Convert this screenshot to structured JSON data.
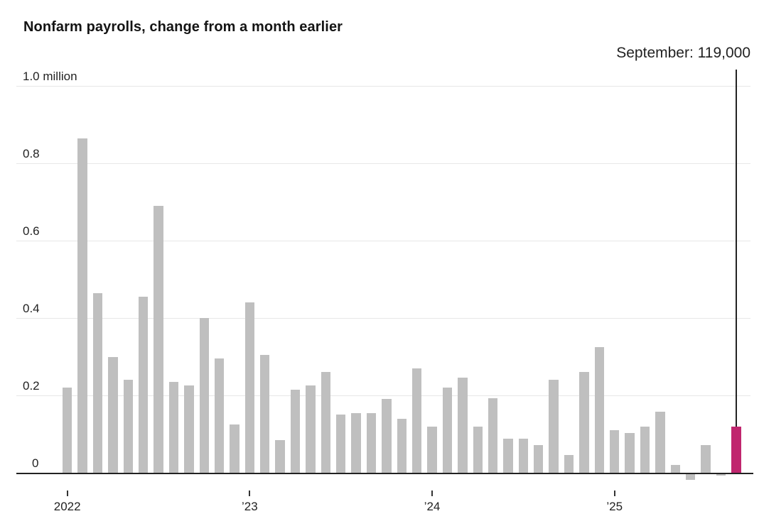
{
  "title": "Nonfarm payrolls, change from a month earlier",
  "annotation": {
    "label": "September: 119,000"
  },
  "colors": {
    "bar": "#bfbfbf",
    "highlight": "#c0266e",
    "gridline": "#e7e7e7",
    "axis": "#222222",
    "tick_text": "#222222",
    "title_text": "#141414",
    "annotation_text": "#222222",
    "annotation_line": "#222222",
    "background": "#ffffff"
  },
  "chart_data": {
    "type": "bar",
    "title": "Nonfarm payrolls, change from a month earlier",
    "unit": "million (change from a month earlier)",
    "xlabel": "",
    "ylabel": "",
    "ylim": [
      -0.02,
      1.0
    ],
    "grid": true,
    "legend": false,
    "categories": [
      "Jan 2022",
      "Feb 2022",
      "Mar 2022",
      "Apr 2022",
      "May 2022",
      "Jun 2022",
      "Jul 2022",
      "Aug 2022",
      "Sep 2022",
      "Oct 2022",
      "Nov 2022",
      "Dec 2022",
      "Jan 2023",
      "Feb 2023",
      "Mar 2023",
      "Apr 2023",
      "May 2023",
      "Jun 2023",
      "Jul 2023",
      "Aug 2023",
      "Sep 2023",
      "Oct 2023",
      "Nov 2023",
      "Dec 2023",
      "Jan 2024",
      "Feb 2024",
      "Mar 2024",
      "Apr 2024",
      "May 2024",
      "Jun 2024",
      "Jul 2024",
      "Aug 2024",
      "Sep 2024",
      "Oct 2024",
      "Nov 2024",
      "Dec 2024",
      "Jan 2025",
      "Feb 2025",
      "Mar 2025",
      "Apr 2025",
      "May 2025",
      "Jun 2025",
      "Jul 2025",
      "Aug 2025",
      "Sep 2025"
    ],
    "values": [
      0.22,
      0.865,
      0.465,
      0.3,
      0.24,
      0.455,
      0.69,
      0.235,
      0.225,
      0.4,
      0.295,
      0.125,
      0.44,
      0.305,
      0.085,
      0.215,
      0.225,
      0.26,
      0.15,
      0.155,
      0.155,
      0.19,
      0.14,
      0.27,
      0.12,
      0.22,
      0.245,
      0.12,
      0.193,
      0.088,
      0.088,
      0.072,
      0.24,
      0.045,
      0.26,
      0.325,
      0.11,
      0.102,
      0.12,
      0.158,
      0.02,
      -0.015,
      0.072,
      -0.005,
      0.119
    ],
    "highlight": {
      "index": 44,
      "category": "Sep 2025",
      "value": 0.119,
      "label": "September: 119,000"
    },
    "y_ticks": [
      {
        "value": 0,
        "label": "0"
      },
      {
        "value": 0.2,
        "label": "0.2"
      },
      {
        "value": 0.4,
        "label": "0.4"
      },
      {
        "value": 0.6,
        "label": "0.6"
      },
      {
        "value": 0.8,
        "label": "0.8"
      },
      {
        "value": 1.0,
        "label": "1.0 million"
      }
    ],
    "x_ticks": [
      {
        "index": 0,
        "label": "2022"
      },
      {
        "index": 12,
        "label": "’23"
      },
      {
        "index": 24,
        "label": "’24"
      },
      {
        "index": 36,
        "label": "’25"
      }
    ]
  }
}
